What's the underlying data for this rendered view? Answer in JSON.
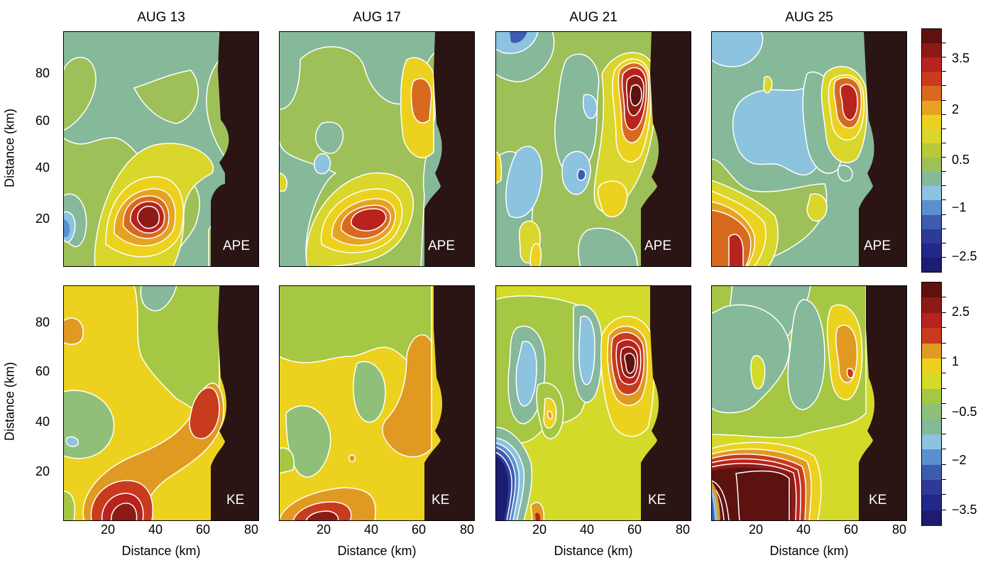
{
  "figure": {
    "column_titles": [
      "AUG 13",
      "AUG 17",
      "AUG 21",
      "AUG 25"
    ],
    "ylabel": "Distance (km)",
    "xlabel": "Distance (km)",
    "x_ticks": [
      "20",
      "40",
      "60",
      "80"
    ],
    "y_ticks": [
      "20",
      "40",
      "60",
      "80"
    ],
    "row_labels": [
      "APE",
      "KE"
    ],
    "colorbars": [
      {
        "labels": [
          "3.5",
          "2",
          "0.5",
          "−1",
          "−2.5"
        ],
        "colors": [
          "#5e1210",
          "#8c1b16",
          "#b8231d",
          "#c83b1e",
          "#d86a20",
          "#e6a322",
          "#ecd21f",
          "#d9d62c",
          "#b8c93a",
          "#9ec058",
          "#86b89a",
          "#8cc3df",
          "#5b90d0",
          "#3d5bb0",
          "#2e3b96",
          "#24278a",
          "#1c1c70"
        ]
      },
      {
        "labels": [
          "2.5",
          "1",
          "−0.5",
          "−2",
          "−3.5"
        ],
        "colors": [
          "#5e1210",
          "#8c1b16",
          "#b8231d",
          "#c83b1e",
          "#e09a22",
          "#ecd21f",
          "#d4da2a",
          "#a5c743",
          "#8fbf78",
          "#86b89a",
          "#8cc3df",
          "#5b90d0",
          "#3d5bb0",
          "#2e3b96",
          "#24278a",
          "#1c1c70"
        ]
      }
    ]
  },
  "chart_data": [
    {
      "type": "heatmap",
      "title": "AUG 13",
      "variable": "APE",
      "xlim": [
        0,
        82
      ],
      "ylim": [
        0,
        96
      ],
      "xlabel": "",
      "ylabel": "Distance (km)",
      "features": [
        {
          "kind": "max",
          "x": 34,
          "y": 18,
          "value": 3.5
        },
        {
          "kind": "min",
          "x": 2,
          "y": 16,
          "value": -1
        }
      ]
    },
    {
      "type": "heatmap",
      "title": "AUG 17",
      "variable": "APE",
      "xlim": [
        0,
        82
      ],
      "ylim": [
        0,
        96
      ],
      "xlabel": "",
      "ylabel": "",
      "features": [
        {
          "kind": "max",
          "x": 40,
          "y": 20,
          "value": 3
        },
        {
          "kind": "max",
          "x": 62,
          "y": 72,
          "value": 2
        },
        {
          "kind": "min",
          "x": 20,
          "y": 42,
          "value": -1
        }
      ]
    },
    {
      "type": "heatmap",
      "title": "AUG 21",
      "variable": "APE",
      "xlim": [
        0,
        82
      ],
      "ylim": [
        0,
        96
      ],
      "xlabel": "",
      "ylabel": "",
      "features": [
        {
          "kind": "max",
          "x": 58,
          "y": 72,
          "value": 3.5
        },
        {
          "kind": "min",
          "x": 10,
          "y": 93,
          "value": -1.5
        },
        {
          "kind": "min",
          "x": 36,
          "y": 38,
          "value": -1.5
        },
        {
          "kind": "min",
          "x": 12,
          "y": 40,
          "value": -1
        }
      ]
    },
    {
      "type": "heatmap",
      "title": "AUG 25",
      "variable": "APE",
      "xlim": [
        0,
        82
      ],
      "ylim": [
        0,
        96
      ],
      "xlabel": "",
      "ylabel": "",
      "features": [
        {
          "kind": "max",
          "x": 60,
          "y": 70,
          "value": 3
        },
        {
          "kind": "max",
          "x": 15,
          "y": 15,
          "value": 3
        },
        {
          "kind": "min",
          "x": 38,
          "y": 50,
          "value": -1
        }
      ]
    },
    {
      "type": "heatmap",
      "title": "AUG 13",
      "variable": "KE",
      "xlim": [
        0,
        82
      ],
      "ylim": [
        0,
        96
      ],
      "xlabel": "Distance (km)",
      "ylabel": "Distance (km)",
      "features": [
        {
          "kind": "max",
          "x": 25,
          "y": 8,
          "value": 3
        },
        {
          "kind": "max",
          "x": 58,
          "y": 45,
          "value": 2
        },
        {
          "kind": "min",
          "x": 8,
          "y": 30,
          "value": -1
        }
      ]
    },
    {
      "type": "heatmap",
      "title": "AUG 17",
      "variable": "KE",
      "xlim": [
        0,
        82
      ],
      "ylim": [
        0,
        96
      ],
      "xlabel": "Distance (km)",
      "ylabel": "",
      "features": [
        {
          "kind": "max",
          "x": 18,
          "y": 3,
          "value": 3
        },
        {
          "kind": "max",
          "x": 62,
          "y": 60,
          "value": 1.5
        },
        {
          "kind": "min",
          "x": 12,
          "y": 40,
          "value": -0.5
        }
      ]
    },
    {
      "type": "heatmap",
      "title": "AUG 21",
      "variable": "KE",
      "xlim": [
        0,
        82
      ],
      "ylim": [
        0,
        96
      ],
      "xlabel": "Distance (km)",
      "ylabel": "",
      "features": [
        {
          "kind": "max",
          "x": 58,
          "y": 65,
          "value": 3.5
        },
        {
          "kind": "min",
          "x": 5,
          "y": 8,
          "value": -4
        },
        {
          "kind": "min",
          "x": 40,
          "y": 70,
          "value": -1.5
        }
      ]
    },
    {
      "type": "heatmap",
      "title": "AUG 25",
      "variable": "KE",
      "xlim": [
        0,
        82
      ],
      "ylim": [
        0,
        96
      ],
      "xlabel": "Distance (km)",
      "ylabel": "",
      "features": [
        {
          "kind": "max",
          "x": 22,
          "y": 12,
          "value": 3.5
        },
        {
          "kind": "max",
          "x": 60,
          "y": 62,
          "value": 2
        },
        {
          "kind": "min",
          "x": 2,
          "y": 8,
          "value": -3
        }
      ]
    }
  ]
}
